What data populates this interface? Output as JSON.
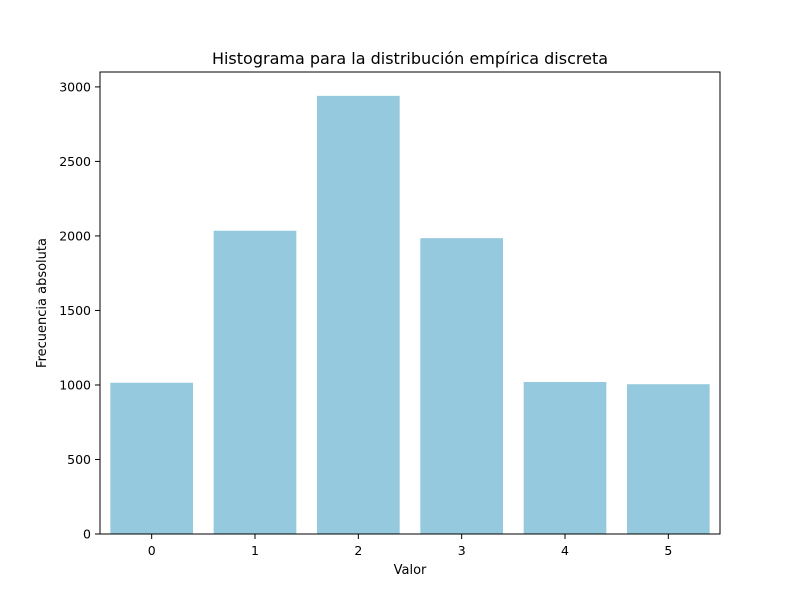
{
  "chart_data": {
    "type": "bar",
    "title": "Histograma para la distribución empírica discreta",
    "xlabel": "Valor",
    "ylabel": "Frecuencia absoluta",
    "categories": [
      "0",
      "1",
      "2",
      "3",
      "4",
      "5"
    ],
    "values": [
      1015,
      2035,
      2940,
      1985,
      1020,
      1005
    ],
    "ylim": [
      0,
      3100
    ],
    "yticks": [
      0,
      500,
      1000,
      1500,
      2000,
      2500,
      3000
    ],
    "grid": false,
    "legend": "none",
    "colors": {
      "bar": "#95c9de",
      "axis": "#000000",
      "background": "#ffffff"
    }
  }
}
